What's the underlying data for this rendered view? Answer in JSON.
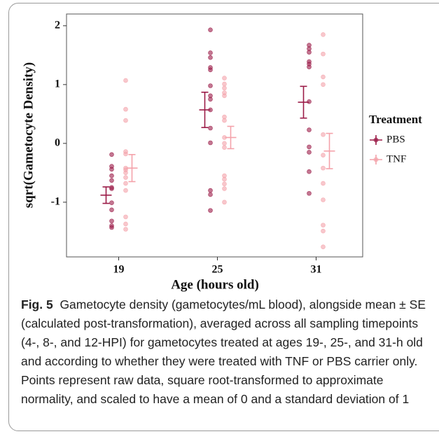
{
  "chart_data": {
    "type": "dot-errorbar",
    "x_label": "Age (hours old)",
    "y_label": "sqrt(Gametocyte Density)",
    "categories": [
      "19",
      "25",
      "31"
    ],
    "ylim": [
      -1.93,
      2.2
    ],
    "yticks": [
      -1,
      0,
      1,
      2
    ],
    "legend_title": "Treatment",
    "legend_position": "right",
    "series": [
      {
        "name": "PBS",
        "color": "#9b1b47",
        "points": [
          [
            -0.19,
            -0.39,
            -0.44,
            -0.55,
            -0.63,
            -0.75,
            -0.77,
            -1.01,
            -1.13,
            -1.32,
            -1.4,
            -1.43
          ],
          [
            1.93,
            1.54,
            1.46,
            1.29,
            1.25,
            0.98,
            0.81,
            0.75,
            0.57,
            0.26,
            0.01,
            -0.8,
            -0.87,
            -1.14
          ],
          [
            1.67,
            1.61,
            1.55,
            1.39,
            1.35,
            1.3,
            0.71,
            0.23,
            -0.06,
            -0.15,
            -0.48,
            -0.85
          ]
        ],
        "mean": [
          -0.88,
          0.57,
          0.7
        ],
        "se": [
          0.14,
          0.3,
          0.27
        ]
      },
      {
        "name": "TNF",
        "color": "#f4a2aa",
        "points": [
          [
            1.07,
            0.58,
            0.39,
            -0.14,
            -0.18,
            -0.42,
            -0.45,
            -0.5,
            -0.58,
            -0.68,
            -0.8,
            -1.25,
            -1.37,
            -1.46
          ],
          [
            1.11,
            1.01,
            0.94,
            0.86,
            0.81,
            0.45,
            0.39,
            0.1,
            0,
            -0.07,
            -0.55,
            -0.61,
            -0.69,
            -0.77,
            -1.0
          ],
          [
            1.85,
            1.52,
            1.13,
            1.0,
            0.15,
            -0.2,
            -0.42,
            -0.68,
            -0.96,
            -1.39,
            -1.49,
            -1.76
          ]
        ],
        "mean": [
          -0.42,
          0.1,
          -0.13
        ],
        "se": [
          0.23,
          0.19,
          0.3
        ]
      }
    ]
  },
  "caption": {
    "label": "Fig. 5",
    "text": "Gametocyte density (gametocytes/mL blood), alongside mean ± SE (calculated post-transformation), averaged across all sampling timepoints (4-, 8-, and 12-HPI) for gametocytes treated at ages 19-, 25-, and 31-h old and according to whether they were treated with TNF or PBS carrier only. Points represent raw data, square root-transformed to approximate normality, and scaled to have a mean of 0 and a standard deviation of 1"
  }
}
